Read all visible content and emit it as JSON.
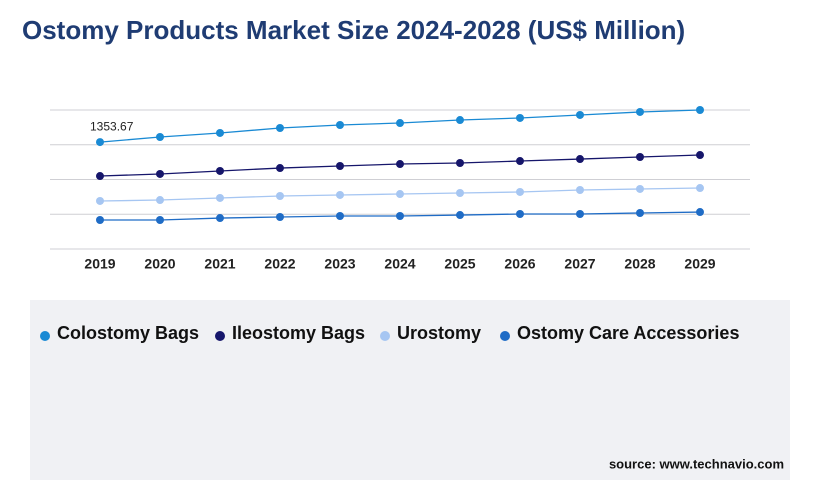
{
  "chart_data": {
    "type": "line",
    "title": "Ostomy Products Market Size 2024-2028 (US$ Million)",
    "categories": [
      "2019",
      "2020",
      "2021",
      "2022",
      "2023",
      "2024",
      "2025",
      "2026",
      "2027",
      "2028",
      "2029"
    ],
    "series": [
      {
        "name": "Colostomy Bags",
        "color": "#1a8ad4",
        "values": [
          1353.67,
          1418,
          1469,
          1532,
          1570,
          1595,
          1633,
          1659,
          1697,
          1735,
          1760
        ]
      },
      {
        "name": "Ileostomy Bags",
        "color": "#16166b",
        "values": [
          924,
          950,
          988,
          1025,
          1051,
          1076,
          1089,
          1114,
          1139,
          1165,
          1190
        ]
      },
      {
        "name": "Urostomy",
        "color": "#a6c6f2",
        "values": [
          608,
          620,
          646,
          671,
          684,
          696,
          709,
          722,
          747,
          760,
          772
        ]
      },
      {
        "name": "Ostomy Care Accessories",
        "color": "#1f6cc6",
        "values": [
          367,
          367,
          392,
          405,
          418,
          418,
          430,
          443,
          443,
          456,
          468
        ]
      }
    ],
    "ylim": [
      0,
      1760
    ],
    "grid": true,
    "source": "source: www.technavio.com"
  }
}
